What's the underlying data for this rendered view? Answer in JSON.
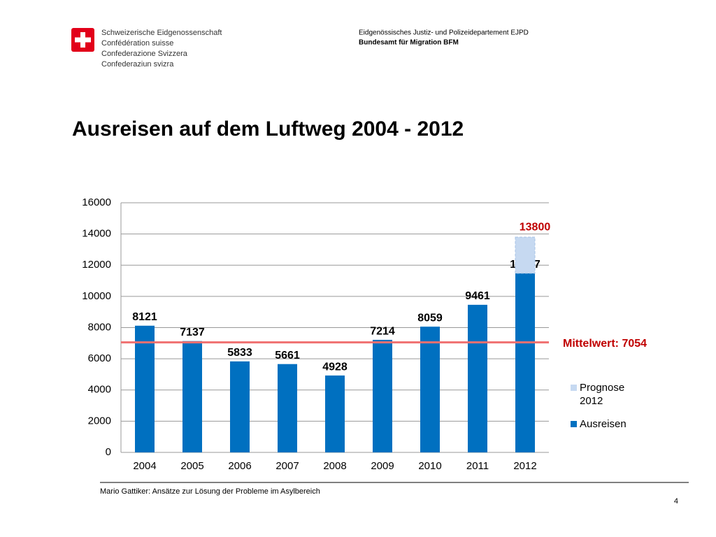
{
  "header": {
    "confederation": [
      "Schweizerische Eidgenossenschaft",
      "Confédération suisse",
      "Confederazione Svizzera",
      "Confederaziun svizra"
    ],
    "department": "Eidgenössisches Justiz- und Polizeidepartement EJPD",
    "office": "Bundesamt für Migration BFM"
  },
  "footer": {
    "text": "Mario Gattiker: Ansätze zur Lösung der Probleme im Asylbereich",
    "page": "4"
  },
  "chart_data": {
    "type": "stacked_bar",
    "title": "Ausreisen auf dem Luftweg 2004 - 2012",
    "categories": [
      "2004",
      "2005",
      "2006",
      "2007",
      "2008",
      "2009",
      "2010",
      "2011",
      "2012"
    ],
    "series": [
      {
        "name": "Ausreisen",
        "color": "#0070c0",
        "values": [
          8121,
          7137,
          5833,
          5661,
          4928,
          7214,
          8059,
          9461,
          11477
        ]
      },
      {
        "name": "Prognose 2012",
        "color": "#c6d9f1",
        "values": [
          null,
          null,
          null,
          null,
          null,
          null,
          null,
          null,
          2323
        ]
      }
    ],
    "prognose_total": 13800,
    "mean": {
      "label": "Mittelwert: 7054",
      "value": 7054,
      "color": "#f07070"
    },
    "ylim": [
      0,
      16000
    ],
    "yticks": [
      0,
      2000,
      4000,
      6000,
      8000,
      10000,
      12000,
      14000,
      16000
    ],
    "grid": true,
    "legend": "right"
  }
}
